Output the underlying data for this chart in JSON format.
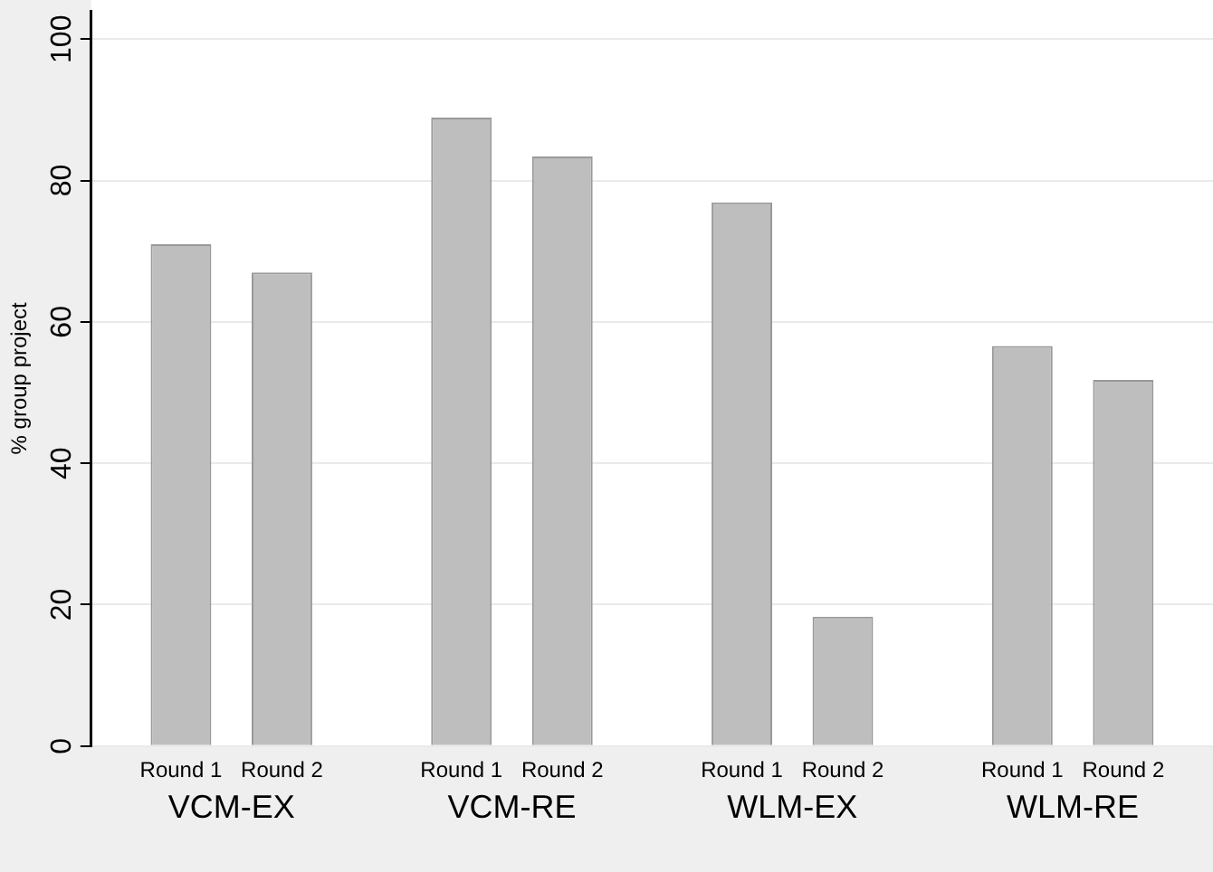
{
  "chart_data": {
    "type": "bar",
    "ylabel": "% group project",
    "categories": [
      "VCM-EX",
      "VCM-RE",
      "WLM-EX",
      "WLM-RE"
    ],
    "series": [
      {
        "name": "Round 1",
        "color": "#bebebe",
        "values": [
          71.0,
          88.9,
          76.9,
          56.6
        ]
      },
      {
        "name": "Round 2",
        "color": "#bebebe",
        "values": [
          67.0,
          83.4,
          18.3,
          51.8
        ]
      }
    ],
    "ylim": [
      0,
      104
    ],
    "yticks": [
      0,
      20,
      40,
      60,
      80,
      100
    ],
    "grid": "y",
    "legend": false
  }
}
